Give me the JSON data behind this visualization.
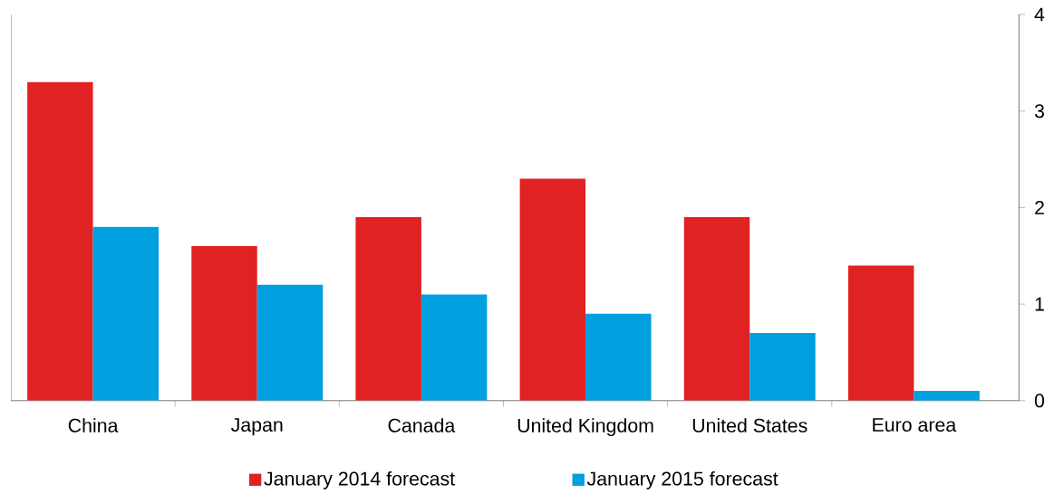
{
  "chart_data": {
    "type": "bar",
    "categories": [
      "China",
      "Japan",
      "Canada",
      "United Kingdom",
      "United States",
      "Euro area"
    ],
    "series": [
      {
        "name": "January 2014 forecast",
        "color": "#e02223",
        "values": [
          3.3,
          1.6,
          1.9,
          2.3,
          1.9,
          1.4
        ]
      },
      {
        "name": "January 2015 forecast",
        "color": "#00a0e0",
        "values": [
          1.8,
          1.2,
          1.1,
          0.9,
          0.7,
          0.1
        ]
      }
    ],
    "ylim": [
      0,
      4
    ],
    "yticks": [
      0,
      1,
      2,
      3,
      4
    ],
    "grid": false,
    "legend": "bottom"
  }
}
